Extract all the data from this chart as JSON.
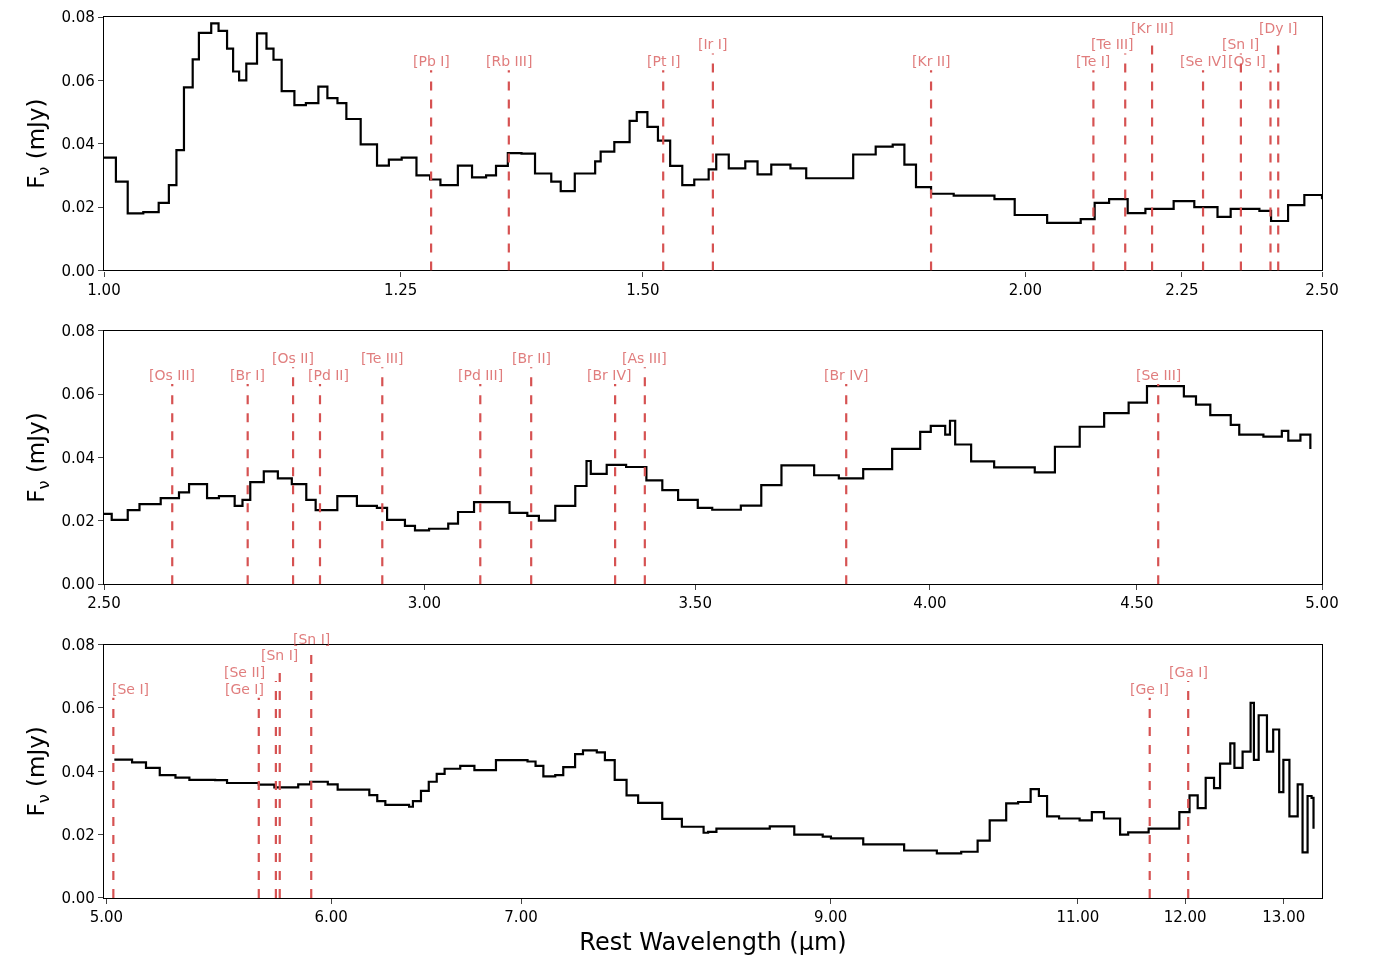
{
  "chart_data": [
    {
      "type": "step",
      "ylabel": "F$_{ν}$ (mJy)",
      "log": "x",
      "xlim": [
        1.0,
        2.5
      ],
      "xticks": [
        {
          "value": 1.0,
          "label": "1.00"
        },
        {
          "value": 1.25,
          "label": "1.25"
        },
        {
          "value": 1.5,
          "label": "1.50"
        },
        {
          "value": 2.0,
          "label": "2.00"
        },
        {
          "value": 2.25,
          "label": "2.25"
        },
        {
          "value": 2.5,
          "label": "2.50"
        }
      ],
      "ylim": [
        0,
        0.08
      ],
      "yticks": [
        {
          "value": 0,
          "label": "0.00"
        },
        {
          "value": 0.02,
          "label": "0.02"
        },
        {
          "value": 0.04,
          "label": "0.04"
        },
        {
          "value": 0.06,
          "label": "0.06"
        },
        {
          "value": 0.08,
          "label": "0.08"
        }
      ],
      "series": [
        {
          "color": "#000000",
          "x": [
            1.0,
            1.009,
            1.018,
            1.03,
            1.042,
            1.05,
            1.056,
            1.062,
            1.069,
            1.074,
            1.084,
            1.09,
            1.097,
            1.102,
            1.107,
            1.113,
            1.122,
            1.13,
            1.136,
            1.143,
            1.154,
            1.164,
            1.175,
            1.183,
            1.192,
            1.2,
            1.213,
            1.228,
            1.239,
            1.251,
            1.265,
            1.278,
            1.288,
            1.305,
            1.319,
            1.333,
            1.343,
            1.355,
            1.369,
            1.383,
            1.4,
            1.41,
            1.425,
            1.447,
            1.453,
            1.468,
            1.485,
            1.493,
            1.505,
            1.517,
            1.531,
            1.545,
            1.559,
            1.576,
            1.585,
            1.6,
            1.62,
            1.635,
            1.652,
            1.676,
            1.696,
            1.733,
            1.757,
            1.787,
            1.81,
            1.826,
            1.842,
            1.863,
            1.895,
            1.954,
            1.984,
            2.033,
            2.085,
            2.107,
            2.13,
            2.16,
            2.189,
            2.236,
            2.271,
            2.311,
            2.334,
            2.385,
            2.406,
            2.437,
            2.467,
            2.5
          ],
          "values": [
            0.0356,
            0.028,
            0.018,
            0.0184,
            0.0213,
            0.0269,
            0.038,
            0.0578,
            0.0666,
            0.075,
            0.078,
            0.0756,
            0.07,
            0.0628,
            0.06,
            0.0653,
            0.0748,
            0.07,
            0.0665,
            0.0566,
            0.0522,
            0.0528,
            0.058,
            0.0544,
            0.0528,
            0.0478,
            0.0398,
            0.0331,
            0.035,
            0.0356,
            0.03,
            0.0287,
            0.0269,
            0.0331,
            0.0294,
            0.03,
            0.033,
            0.037,
            0.0369,
            0.0306,
            0.028,
            0.025,
            0.0306,
            0.0344,
            0.0375,
            0.0405,
            0.0472,
            0.05,
            0.0453,
            0.041,
            0.033,
            0.0269,
            0.0287,
            0.0319,
            0.0366,
            0.0322,
            0.0344,
            0.0303,
            0.0334,
            0.0322,
            0.0291,
            0.0291,
            0.0366,
            0.0391,
            0.0397,
            0.0334,
            0.0263,
            0.0242,
            0.0236,
            0.0225,
            0.0175,
            0.015,
            0.0162,
            0.0213,
            0.0225,
            0.0181,
            0.0194,
            0.0219,
            0.02,
            0.0169,
            0.0194,
            0.0188,
            0.0156,
            0.0206,
            0.0238,
            0.0225
          ]
        }
      ],
      "ref_lines": [
        {
          "axis": "x",
          "value": 1.279,
          "label": "[Pb I]",
          "color": "#d65252",
          "line_style": "dashed"
        },
        {
          "axis": "x",
          "value": 1.356,
          "label": "[Rb III]",
          "color": "#d65252",
          "line_style": "dashed"
        },
        {
          "axis": "x",
          "value": 1.523,
          "label": "[Pt I]",
          "color": "#d65252",
          "line_style": "dashed"
        },
        {
          "axis": "x",
          "value": 1.581,
          "label": "[Ir I]",
          "color": "#d65252",
          "line_style": "dashed"
        },
        {
          "axis": "x",
          "value": 1.863,
          "label": "[Kr II]",
          "color": "#d65252",
          "line_style": "dashed"
        },
        {
          "axis": "x",
          "value": 2.105,
          "label": "[Te I]",
          "color": "#d65252",
          "line_style": "dashed"
        },
        {
          "axis": "x",
          "value": 2.156,
          "label": "[Te III]",
          "color": "#d65252",
          "line_style": "dashed"
        },
        {
          "axis": "x",
          "value": 2.2,
          "label": "[Kr III]",
          "color": "#d65252",
          "line_style": "dashed"
        },
        {
          "axis": "x",
          "value": 2.286,
          "label": "[Se IV]",
          "color": "#d65252",
          "line_style": "dashed"
        },
        {
          "axis": "x",
          "value": 2.352,
          "label": "[Sn I]",
          "color": "#d65252",
          "line_style": "dashed"
        },
        {
          "axis": "x",
          "value": 2.405,
          "label": "[Os I]",
          "color": "#d65252",
          "line_style": "dashed"
        },
        {
          "axis": "x",
          "value": 2.419,
          "label": "[Dy I]",
          "color": "#d65252",
          "line_style": "dashed"
        }
      ]
    },
    {
      "type": "step",
      "ylabel": "F$_{ν}$ (mJy)",
      "log": "x",
      "xlim": [
        2.5,
        5.0
      ],
      "xticks": [
        {
          "value": 2.5,
          "label": "2.50"
        },
        {
          "value": 3.0,
          "label": "3.00"
        },
        {
          "value": 3.5,
          "label": "3.50"
        },
        {
          "value": 4.0,
          "label": "4.00"
        },
        {
          "value": 4.5,
          "label": "4.50"
        },
        {
          "value": 5.0,
          "label": "5.00"
        }
      ],
      "ylim": [
        0,
        0.08
      ],
      "yticks": [
        {
          "value": 0,
          "label": "0.00"
        },
        {
          "value": 0.02,
          "label": "0.02"
        },
        {
          "value": 0.04,
          "label": "0.04"
        },
        {
          "value": 0.06,
          "label": "0.06"
        },
        {
          "value": 0.08,
          "label": "0.08"
        }
      ],
      "series": [
        {
          "color": "#000000",
          "x": [
            2.5,
            2.511,
            2.534,
            2.551,
            2.582,
            2.609,
            2.624,
            2.651,
            2.669,
            2.693,
            2.705,
            2.717,
            2.738,
            2.76,
            2.782,
            2.805,
            2.82,
            2.855,
            2.871,
            2.887,
            2.92,
            2.937,
            2.967,
            2.984,
            3.008,
            3.041,
            3.058,
            3.086,
            3.118,
            3.149,
            3.181,
            3.202,
            3.232,
            3.269,
            3.29,
            3.298,
            3.328,
            3.365,
            3.404,
            3.435,
            3.466,
            3.505,
            3.534,
            3.592,
            3.634,
            3.676,
            3.711,
            3.745,
            3.798,
            3.851,
            3.915,
            3.978,
            4.002,
            4.035,
            4.046,
            4.058,
            4.095,
            4.149,
            4.206,
            4.246,
            4.295,
            4.356,
            4.417,
            4.479,
            4.526,
            4.573,
            4.622,
            4.654,
            4.692,
            4.747,
            4.77,
            4.836,
            4.887,
            4.905,
            4.939,
            4.967
          ],
          "values": [
            0.0222,
            0.0203,
            0.0234,
            0.0253,
            0.0272,
            0.029,
            0.0316,
            0.0272,
            0.0278,
            0.0247,
            0.0266,
            0.0322,
            0.0356,
            0.0334,
            0.0316,
            0.0266,
            0.0234,
            0.0278,
            0.0278,
            0.0247,
            0.0241,
            0.0203,
            0.0184,
            0.017,
            0.0175,
            0.0191,
            0.0228,
            0.0259,
            0.0259,
            0.0225,
            0.0216,
            0.0201,
            0.0247,
            0.031,
            0.0389,
            0.0348,
            0.0377,
            0.037,
            0.0328,
            0.0297,
            0.0266,
            0.0241,
            0.0235,
            0.0248,
            0.0313,
            0.0375,
            0.0375,
            0.0344,
            0.0334,
            0.0363,
            0.0427,
            0.0481,
            0.05,
            0.0472,
            0.0516,
            0.0441,
            0.0388,
            0.0369,
            0.0369,
            0.0353,
            0.0434,
            0.0497,
            0.054,
            0.0573,
            0.0625,
            0.0625,
            0.0593,
            0.0567,
            0.0534,
            0.0503,
            0.0472,
            0.0466,
            0.0484,
            0.0453,
            0.0472,
            0.0427
          ]
        }
      ],
      "ref_lines": [
        {
          "axis": "x",
          "value": 2.599,
          "label": "[Os III]",
          "color": "#d65252",
          "line_style": "dashed"
        },
        {
          "axis": "x",
          "value": 2.713,
          "label": "[Br I]",
          "color": "#d65252",
          "line_style": "dashed"
        },
        {
          "axis": "x",
          "value": 2.784,
          "label": "[Os II]",
          "color": "#d65252",
          "line_style": "dashed"
        },
        {
          "axis": "x",
          "value": 2.827,
          "label": "[Pd II]",
          "color": "#d65252",
          "line_style": "dashed"
        },
        {
          "axis": "x",
          "value": 2.929,
          "label": "[Te III]",
          "color": "#d65252",
          "line_style": "dashed"
        },
        {
          "axis": "x",
          "value": 3.097,
          "label": "[Pd III]",
          "color": "#d65252",
          "line_style": "dashed"
        },
        {
          "axis": "x",
          "value": 3.188,
          "label": "[Br II]",
          "color": "#d65252",
          "line_style": "dashed"
        },
        {
          "axis": "x",
          "value": 3.344,
          "label": "[Br IV]",
          "color": "#d65252",
          "line_style": "dashed"
        },
        {
          "axis": "x",
          "value": 3.401,
          "label": "[As III]",
          "color": "#d65252",
          "line_style": "dashed"
        },
        {
          "axis": "x",
          "value": 3.814,
          "label": "[Br IV]",
          "color": "#d65252",
          "line_style": "dashed"
        },
        {
          "axis": "x",
          "value": 4.555,
          "label": "[Se III]",
          "color": "#d65252",
          "line_style": "dashed"
        }
      ]
    },
    {
      "type": "step",
      "ylabel": "F$_{ν}$ (mJy)",
      "xlabel": "Rest Wavelength (μm)",
      "log": "x",
      "xlim": [
        4.99,
        13.41
      ],
      "xticks": [
        {
          "value": 5.0,
          "label": "5.00"
        },
        {
          "value": 6.0,
          "label": "6.00"
        },
        {
          "value": 7.0,
          "label": "7.00"
        },
        {
          "value": 9.0,
          "label": "9.00"
        },
        {
          "value": 11.0,
          "label": "11.00"
        },
        {
          "value": 12.0,
          "label": "12.00"
        },
        {
          "value": 13.0,
          "label": "13.00"
        }
      ],
      "ylim": [
        0,
        0.08
      ],
      "yticks": [
        {
          "value": 0,
          "label": "0.00"
        },
        {
          "value": 0.02,
          "label": "0.02"
        },
        {
          "value": 0.04,
          "label": "0.04"
        },
        {
          "value": 0.06,
          "label": "0.06"
        },
        {
          "value": 0.08,
          "label": "0.08"
        }
      ],
      "series": [
        {
          "color": "#000000",
          "x": [
            5.032,
            5.097,
            5.105,
            5.163,
            5.221,
            5.288,
            5.348,
            5.461,
            5.514,
            5.658,
            5.73,
            5.833,
            5.842,
            5.899,
            5.984,
            6.032,
            6.169,
            6.189,
            6.229,
            6.27,
            6.392,
            6.412,
            6.454,
            6.495,
            6.537,
            6.579,
            6.663,
            6.74,
            6.859,
            7.037,
            7.083,
            7.128,
            7.197,
            7.244,
            7.314,
            7.361,
            7.444,
            7.493,
            7.553,
            7.626,
            7.698,
            7.85,
            7.976,
            8.118,
            8.148,
            8.203,
            8.566,
            8.738,
            8.942,
            9.002,
            9.241,
            9.553,
            9.81,
            10.006,
            10.14,
            10.24,
            10.378,
            10.479,
            10.586,
            10.657,
            10.728,
            10.833,
            11.015,
            11.125,
            11.235,
            11.383,
            11.458,
            11.65,
            11.84,
            11.944,
            12.043,
            12.123,
            12.202,
            12.285,
            12.345,
            12.448,
            12.49,
            12.573,
            12.655,
            12.689,
            12.738,
            12.824,
            12.889,
            12.952,
            12.996,
            13.06,
            13.148,
            13.2,
            13.254,
            13.297,
            13.318
          ],
          "values": [
            0.0437,
            0.0437,
            0.0428,
            0.0411,
            0.0388,
            0.038,
            0.0373,
            0.0372,
            0.0363,
            0.0358,
            0.0349,
            0.0349,
            0.0359,
            0.0367,
            0.0359,
            0.0342,
            0.0342,
            0.0325,
            0.0306,
            0.0294,
            0.0288,
            0.0306,
            0.0338,
            0.0367,
            0.0392,
            0.0408,
            0.0417,
            0.0404,
            0.0435,
            0.0431,
            0.0417,
            0.0384,
            0.0388,
            0.0413,
            0.0454,
            0.0466,
            0.046,
            0.0435,
            0.0373,
            0.0324,
            0.03,
            0.025,
            0.0225,
            0.0206,
            0.0209,
            0.0219,
            0.0226,
            0.02,
            0.0194,
            0.0188,
            0.0169,
            0.015,
            0.0141,
            0.0146,
            0.0181,
            0.0245,
            0.0299,
            0.0303,
            0.0344,
            0.0322,
            0.0258,
            0.0251,
            0.0245,
            0.0271,
            0.0251,
            0.02,
            0.0207,
            0.0219,
            0.0219,
            0.0271,
            0.0324,
            0.0284,
            0.0379,
            0.0347,
            0.0424,
            0.0488,
            0.0411,
            0.0462,
            0.0616,
            0.0436,
            0.0577,
            0.0462,
            0.0532,
            0.0334,
            0.0436,
            0.0258,
            0.0359,
            0.0144,
            0.0322,
            0.0316,
            0.0219
          ]
        }
      ],
      "ref_lines": [
        {
          "axis": "x",
          "value": 5.028,
          "label": "[Se I]",
          "color": "#d65252",
          "line_style": "dashed"
        },
        {
          "axis": "x",
          "value": 5.658,
          "label": "[Ge I]",
          "color": "#d65252",
          "line_style": "dashed"
        },
        {
          "axis": "x",
          "value": 5.737,
          "label": "[Se II]",
          "color": "#d65252",
          "line_style": "dashed"
        },
        {
          "axis": "x",
          "value": 5.755,
          "label": "[Sn I]",
          "color": "#d65252",
          "line_style": "dashed"
        },
        {
          "axis": "x",
          "value": 5.904,
          "label": "[Sn I]",
          "color": "#d65252",
          "line_style": "dashed"
        },
        {
          "axis": "x",
          "value": 11.66,
          "label": "[Ge I]",
          "color": "#d65252",
          "line_style": "dashed"
        },
        {
          "axis": "x",
          "value": 12.03,
          "label": "[Ga I]",
          "color": "#d65252",
          "line_style": "dashed"
        }
      ]
    }
  ]
}
